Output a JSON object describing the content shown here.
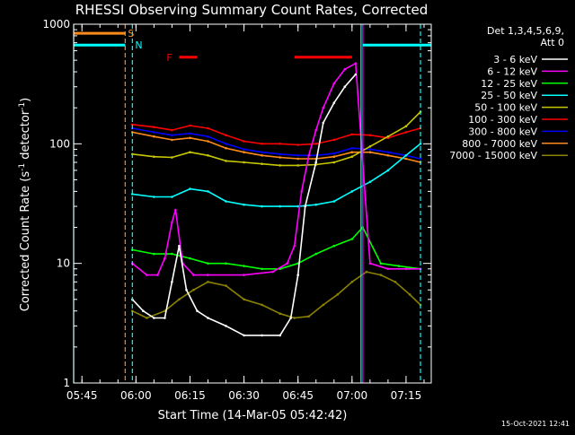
{
  "title": "RHESSI Observing Summary Count Rates, Corrected",
  "xlabel": "Start Time (14-Mar-05 05:42:42)",
  "ylabel_main": "Corrected Count Rate (s",
  "ylabel_sup1": "-1",
  "ylabel_mid": " detector",
  "ylabel_sup2": "-1",
  "ylabel_end": ")",
  "footer_date": "15-Oct-2021 12:41",
  "legend": {
    "header1": "Det 1,3,4,5,6,9,",
    "header2": "Att 0"
  },
  "markers": {
    "S": "S",
    "N": "N",
    "F": "F"
  },
  "colors": {
    "axes": "#ffffff",
    "S": "#ff8c1a",
    "N": "#00ffff",
    "F": "#ff0000"
  },
  "chart_data": {
    "type": "line",
    "yscale": "log",
    "xlim": [
      "05:42:42",
      "07:22:00"
    ],
    "ylim": [
      1,
      1000
    ],
    "x_ticks": [
      "05:45",
      "06:00",
      "06:15",
      "06:30",
      "06:45",
      "07:00",
      "07:15"
    ],
    "y_ticks": [
      "1",
      "10",
      "100",
      "1000"
    ],
    "annotation_bars": [
      {
        "label": "S",
        "color": "#ff8c1a",
        "start": "05:42:42",
        "end": "05:57:00",
        "level": 840
      },
      {
        "label": "N",
        "color": "#00ffff",
        "start": "05:42:42",
        "end": "05:57:00",
        "level": 670
      },
      {
        "label": "N",
        "color": "#00ffff",
        "start": "07:03:00",
        "end": "07:22:00",
        "level": 670
      },
      {
        "label": "F",
        "color": "#ff0000",
        "start": "06:12:00",
        "end": "06:17:00",
        "level": 530
      },
      {
        "label": "F",
        "color": "#ff0000",
        "start": "06:44:00",
        "end": "07:00:00",
        "level": 530
      }
    ],
    "vlines": [
      {
        "time": "05:42:42",
        "color": "#00ffff",
        "style": "solid"
      },
      {
        "time": "05:57:00",
        "color": "#ff8c1a",
        "style": "dashed"
      },
      {
        "time": "05:59:00",
        "color": "#00ffff",
        "style": "dashed"
      },
      {
        "time": "07:02:30",
        "color": "#00ffff",
        "style": "solid"
      },
      {
        "time": "07:03:00",
        "color": "#ff00ff",
        "style": "solid"
      },
      {
        "time": "07:19:00",
        "color": "#00ffff",
        "style": "dashed"
      }
    ],
    "series": [
      {
        "name": "3 - 6 keV",
        "color": "#ffffff",
        "x": [
          "05:59",
          "06:02",
          "06:05",
          "06:08",
          "06:10",
          "06:12",
          "06:14",
          "06:17",
          "06:20",
          "06:25",
          "06:30",
          "06:35",
          "06:40",
          "06:43",
          "06:45",
          "06:47",
          "06:50",
          "06:52",
          "06:55",
          "06:58",
          "07:01"
        ],
        "y": [
          5,
          4,
          3.5,
          3.5,
          7,
          14,
          6,
          4,
          3.5,
          3,
          2.5,
          2.5,
          2.5,
          3.5,
          8,
          30,
          70,
          150,
          220,
          300,
          380
        ]
      },
      {
        "name": "6 - 12 keV",
        "color": "#ff00ff",
        "x": [
          "05:59",
          "06:03",
          "06:06",
          "06:08",
          "06:10",
          "06:11",
          "06:13",
          "06:16",
          "06:20",
          "06:30",
          "06:38",
          "06:42",
          "06:44",
          "06:46",
          "06:48",
          "06:50",
          "06:52",
          "06:55",
          "06:58",
          "07:01",
          "07:05",
          "07:10",
          "07:15",
          "07:19"
        ],
        "y": [
          10,
          8,
          8,
          11,
          22,
          28,
          10,
          8,
          8,
          8,
          8.5,
          10,
          14,
          40,
          80,
          130,
          200,
          320,
          420,
          470,
          10,
          9,
          9,
          9
        ]
      },
      {
        "name": "12 - 25 keV",
        "color": "#00ff00",
        "x": [
          "05:59",
          "06:05",
          "06:10",
          "06:15",
          "06:20",
          "06:25",
          "06:30",
          "06:35",
          "06:40",
          "06:45",
          "06:50",
          "06:55",
          "07:00",
          "07:03",
          "07:08",
          "07:13",
          "07:19"
        ],
        "y": [
          13,
          12,
          12,
          11,
          10,
          10,
          9.5,
          9,
          9,
          10,
          12,
          14,
          16,
          20,
          10,
          9.5,
          9
        ]
      },
      {
        "name": "25 - 50 keV",
        "color": "#00ffff",
        "x": [
          "05:59",
          "06:05",
          "06:10",
          "06:15",
          "06:20",
          "06:25",
          "06:30",
          "06:35",
          "06:40",
          "06:45",
          "06:50",
          "06:55",
          "07:00",
          "07:05",
          "07:10",
          "07:15",
          "07:19"
        ],
        "y": [
          38,
          36,
          36,
          42,
          40,
          33,
          31,
          30,
          30,
          30,
          31,
          33,
          40,
          48,
          60,
          80,
          100
        ]
      },
      {
        "name": "50 - 100 keV",
        "color": "#c8c800",
        "x": [
          "05:59",
          "06:05",
          "06:10",
          "06:15",
          "06:20",
          "06:25",
          "06:30",
          "06:35",
          "06:40",
          "06:45",
          "06:50",
          "06:55",
          "07:00",
          "07:05",
          "07:10",
          "07:15",
          "07:19"
        ],
        "y": [
          82,
          78,
          77,
          85,
          80,
          72,
          70,
          68,
          66,
          66,
          67,
          70,
          78,
          95,
          115,
          140,
          185
        ]
      },
      {
        "name": "100 - 300 keV",
        "color": "#ff0000",
        "x": [
          "05:59",
          "06:05",
          "06:10",
          "06:15",
          "06:20",
          "06:25",
          "06:30",
          "06:35",
          "06:40",
          "06:45",
          "06:50",
          "06:55",
          "07:00",
          "07:05",
          "07:10",
          "07:15",
          "07:19"
        ],
        "y": [
          145,
          138,
          130,
          142,
          135,
          118,
          105,
          100,
          100,
          98,
          100,
          108,
          120,
          118,
          112,
          125,
          135
        ]
      },
      {
        "name": "300 - 800 keV",
        "color": "#0000ff",
        "x": [
          "05:59",
          "06:05",
          "06:10",
          "06:15",
          "06:20",
          "06:25",
          "06:30",
          "06:35",
          "06:40",
          "06:45",
          "06:50",
          "06:55",
          "07:00",
          "07:05",
          "07:10",
          "07:15",
          "07:19"
        ],
        "y": [
          135,
          125,
          118,
          122,
          115,
          100,
          90,
          85,
          82,
          80,
          80,
          83,
          92,
          90,
          85,
          80,
          75
        ]
      },
      {
        "name": "800 - 7000 keV",
        "color": "#ff8c1a",
        "x": [
          "05:59",
          "06:05",
          "06:10",
          "06:15",
          "06:20",
          "06:25",
          "06:30",
          "06:35",
          "06:40",
          "06:45",
          "06:50",
          "06:55",
          "07:00",
          "07:05",
          "07:10",
          "07:15",
          "07:19"
        ],
        "y": [
          125,
          115,
          108,
          112,
          105,
          92,
          85,
          80,
          77,
          75,
          75,
          78,
          85,
          85,
          80,
          75,
          70
        ]
      },
      {
        "name": "7000 - 15000 keV",
        "color": "#8c8200",
        "x": [
          "05:59",
          "06:03",
          "06:08",
          "06:12",
          "06:16",
          "06:20",
          "06:25",
          "06:30",
          "06:35",
          "06:40",
          "06:44",
          "06:48",
          "06:52",
          "06:56",
          "07:00",
          "07:04",
          "07:08",
          "07:12",
          "07:16",
          "07:19"
        ],
        "y": [
          4,
          3.5,
          4,
          5,
          6,
          7,
          6.5,
          5,
          4.5,
          3.8,
          3.5,
          3.6,
          4.5,
          5.5,
          7,
          8.5,
          8,
          7,
          5.5,
          4.5
        ]
      }
    ]
  }
}
